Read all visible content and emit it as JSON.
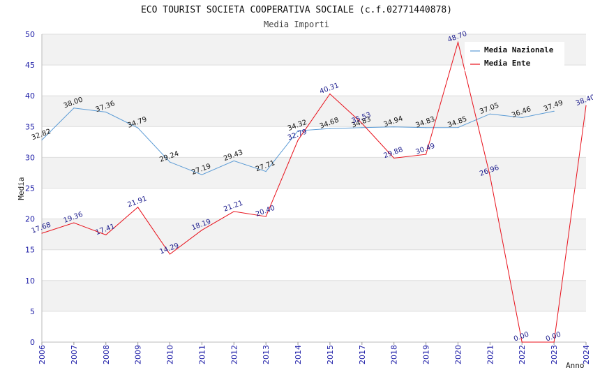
{
  "chart_data": {
    "type": "line",
    "title": "ECO TOURIST SOCIETA COOPERATIVA SOCIALE (c.f.02771440878)",
    "subtitle": "Media Importi",
    "xlabel": "Anno",
    "ylabel": "Media",
    "ylim": [
      0,
      50
    ],
    "yticks": [
      "0",
      "5",
      "10",
      "15",
      "20",
      "25",
      "30",
      "35",
      "40",
      "45",
      "50"
    ],
    "categories": [
      "2006",
      "2007",
      "2008",
      "2009",
      "2010",
      "2011",
      "2012",
      "2013",
      "2014",
      "2015",
      "2017",
      "2018",
      "2019",
      "2020",
      "2021",
      "2022",
      "2023",
      "2024"
    ],
    "legend_position": "top-right",
    "series": [
      {
        "name": "Media Nazionale",
        "color": "#5b9bd5",
        "label_color": "#111111",
        "values": [
          32.82,
          38.0,
          37.36,
          34.79,
          29.24,
          27.19,
          29.43,
          27.71,
          34.32,
          34.68,
          34.83,
          34.94,
          34.83,
          34.85,
          37.05,
          36.46,
          37.49,
          null
        ],
        "labels": [
          "32.82",
          "38.00",
          "37.36",
          "34.79",
          "29.24",
          "27.19",
          "29.43",
          "27.71",
          "34.32",
          "34.68",
          "34.83",
          "34.94",
          "34.83",
          "34.85",
          "37.05",
          "36.46",
          "37.49",
          null
        ]
      },
      {
        "name": "Media Ente",
        "color": "#e8101a",
        "label_color": "#1a1a8c",
        "values": [
          17.68,
          19.36,
          17.41,
          21.91,
          14.29,
          18.19,
          21.21,
          20.4,
          32.79,
          40.31,
          35.53,
          29.88,
          30.49,
          48.7,
          26.96,
          0.0,
          0.0,
          38.4
        ],
        "labels": [
          "17.68",
          "19.36",
          "17.41",
          "21.91",
          "14.29",
          "18.19",
          "21.21",
          "20.40",
          "32.79",
          "40.31",
          "35.53",
          "29.88",
          "30.49",
          "48.70",
          "26.96",
          "0.00",
          "0.00",
          "38.40"
        ]
      }
    ]
  }
}
